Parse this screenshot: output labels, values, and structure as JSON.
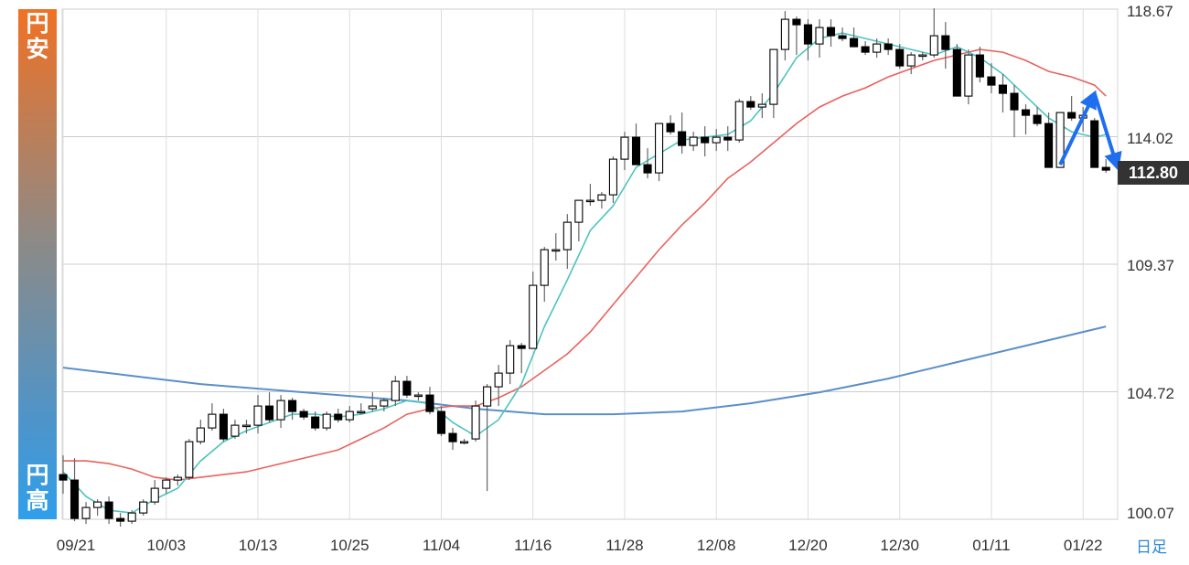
{
  "sidebar": {
    "top_label": [
      "円",
      "安"
    ],
    "bottom_label": [
      "円",
      "高"
    ]
  },
  "period_label": "日足",
  "current_price_label": "112.80",
  "colors": {
    "up_candle": "#ffffff",
    "down_candle": "#000000",
    "ma_short": "#4dc4c0",
    "ma_mid": "#e8625e",
    "ma_long": "#5b8fc9",
    "arrow": "#1e6ef0",
    "period_label": "#2a8ad8"
  },
  "chart_data": {
    "type": "candlestick",
    "x_tick_labels": [
      "09/21",
      "10/03",
      "10/13",
      "10/25",
      "11/04",
      "11/16",
      "11/28",
      "12/08",
      "12/20",
      "12/30",
      "01/11",
      "01/22"
    ],
    "y_tick_labels": [
      "118.67",
      "114.02",
      "109.37",
      "104.72",
      "100.07"
    ],
    "ylim": [
      100.07,
      118.67
    ],
    "grid": true,
    "candles": [
      [
        101.7,
        102.4,
        101.0,
        101.5
      ],
      [
        101.5,
        102.3,
        100.0,
        100.1
      ],
      [
        100.1,
        100.7,
        99.9,
        100.5
      ],
      [
        100.5,
        100.8,
        100.2,
        100.7
      ],
      [
        100.7,
        100.9,
        99.9,
        100.1
      ],
      [
        100.1,
        100.3,
        99.8,
        100.0
      ],
      [
        100.0,
        100.4,
        99.9,
        100.3
      ],
      [
        100.3,
        100.8,
        100.2,
        100.7
      ],
      [
        100.7,
        101.5,
        100.6,
        101.2
      ],
      [
        101.2,
        101.6,
        101.0,
        101.5
      ],
      [
        101.5,
        101.7,
        101.3,
        101.6
      ],
      [
        101.6,
        103.0,
        101.5,
        102.9
      ],
      [
        102.9,
        103.7,
        102.8,
        103.4
      ],
      [
        103.4,
        104.3,
        103.3,
        103.9
      ],
      [
        103.9,
        104.1,
        102.9,
        103.0
      ],
      [
        103.1,
        103.7,
        103.0,
        103.5
      ],
      [
        103.5,
        103.7,
        103.2,
        103.5
      ],
      [
        103.5,
        104.6,
        103.2,
        104.2
      ],
      [
        104.2,
        104.7,
        103.6,
        103.7
      ],
      [
        103.7,
        104.6,
        103.4,
        104.4
      ],
      [
        104.4,
        104.5,
        103.7,
        104.0
      ],
      [
        104.0,
        104.1,
        103.7,
        103.8
      ],
      [
        103.8,
        104.0,
        103.3,
        103.4
      ],
      [
        103.4,
        104.0,
        103.3,
        103.9
      ],
      [
        103.9,
        104.1,
        103.6,
        103.7
      ],
      [
        103.7,
        104.2,
        103.6,
        104.0
      ],
      [
        104.0,
        104.3,
        103.9,
        104.0
      ],
      [
        104.1,
        104.7,
        104.0,
        104.2
      ],
      [
        104.2,
        104.5,
        104.0,
        104.4
      ],
      [
        104.4,
        105.3,
        104.2,
        105.1
      ],
      [
        105.1,
        105.3,
        104.5,
        104.6
      ],
      [
        104.6,
        104.7,
        104.4,
        104.6
      ],
      [
        104.6,
        104.9,
        103.9,
        104.0
      ],
      [
        104.0,
        104.2,
        103.1,
        103.2
      ],
      [
        103.2,
        103.4,
        102.6,
        102.9
      ],
      [
        102.9,
        103.0,
        102.8,
        102.9
      ],
      [
        103.0,
        104.4,
        102.9,
        104.2
      ],
      [
        104.2,
        105.0,
        101.1,
        104.9
      ],
      [
        104.9,
        105.7,
        104.2,
        105.4
      ],
      [
        105.4,
        106.6,
        105.0,
        106.4
      ],
      [
        106.4,
        106.5,
        105.4,
        106.3
      ],
      [
        106.3,
        109.1,
        106.3,
        108.6
      ],
      [
        108.6,
        110.0,
        108.0,
        109.9
      ],
      [
        109.9,
        110.5,
        109.5,
        109.9
      ],
      [
        109.9,
        111.2,
        109.2,
        110.9
      ],
      [
        110.9,
        111.6,
        110.2,
        111.7
      ],
      [
        111.7,
        112.3,
        111.5,
        111.7
      ],
      [
        111.7,
        112.0,
        111.4,
        111.9
      ],
      [
        111.9,
        113.3,
        111.6,
        113.2
      ],
      [
        113.2,
        114.2,
        112.8,
        114.0
      ],
      [
        114.0,
        114.5,
        113.0,
        113.0
      ],
      [
        113.0,
        113.6,
        112.5,
        112.7
      ],
      [
        112.7,
        114.4,
        112.4,
        114.5
      ],
      [
        114.5,
        114.8,
        114.1,
        114.2
      ],
      [
        114.2,
        114.9,
        113.4,
        113.7
      ],
      [
        113.7,
        114.2,
        113.5,
        114.0
      ],
      [
        114.0,
        114.4,
        113.3,
        113.8
      ],
      [
        113.8,
        114.3,
        113.5,
        114.0
      ],
      [
        114.0,
        114.4,
        113.5,
        113.9
      ],
      [
        113.9,
        115.4,
        113.8,
        115.3
      ],
      [
        115.3,
        115.5,
        115.0,
        115.1
      ],
      [
        115.1,
        115.6,
        114.7,
        115.2
      ],
      [
        115.2,
        117.2,
        114.7,
        117.2
      ],
      [
        117.2,
        118.6,
        116.8,
        118.3
      ],
      [
        118.3,
        118.4,
        117.0,
        118.1
      ],
      [
        118.1,
        118.3,
        116.8,
        117.4
      ],
      [
        117.4,
        118.3,
        116.9,
        118.0
      ],
      [
        118.0,
        118.3,
        117.3,
        117.7
      ],
      [
        117.7,
        118.0,
        117.5,
        117.6
      ],
      [
        117.6,
        118.0,
        117.3,
        117.3
      ],
      [
        117.3,
        117.5,
        117.0,
        117.1
      ],
      [
        117.1,
        117.6,
        116.9,
        117.4
      ],
      [
        117.4,
        117.6,
        117.0,
        117.2
      ],
      [
        117.2,
        117.4,
        116.5,
        116.6
      ],
      [
        116.6,
        117.1,
        116.3,
        117.0
      ],
      [
        117.0,
        117.1,
        116.8,
        117.0
      ],
      [
        117.0,
        118.7,
        116.9,
        117.7
      ],
      [
        117.7,
        118.2,
        116.5,
        117.2
      ],
      [
        117.2,
        117.4,
        115.5,
        115.5
      ],
      [
        115.5,
        117.2,
        115.2,
        117.0
      ],
      [
        117.0,
        117.3,
        116.0,
        116.2
      ],
      [
        116.2,
        116.7,
        115.6,
        115.9
      ],
      [
        115.9,
        116.3,
        114.9,
        115.6
      ],
      [
        115.6,
        115.9,
        114.0,
        115.0
      ],
      [
        115.0,
        115.2,
        114.1,
        114.8
      ],
      [
        114.8,
        115.1,
        114.4,
        114.5
      ],
      [
        114.5,
        114.9,
        112.9,
        112.9
      ],
      [
        112.9,
        114.9,
        112.9,
        114.9
      ],
      [
        114.9,
        115.5,
        114.6,
        114.7
      ],
      [
        114.7,
        115.1,
        114.2,
        114.8
      ],
      [
        114.6,
        114.7,
        112.9,
        112.9
      ],
      [
        112.9,
        113.2,
        112.7,
        112.8
      ]
    ],
    "ma_short": [
      [
        0,
        101.8
      ],
      [
        2,
        100.9
      ],
      [
        4,
        100.4
      ],
      [
        6,
        100.3
      ],
      [
        8,
        100.8
      ],
      [
        10,
        101.2
      ],
      [
        12,
        102.2
      ],
      [
        14,
        102.9
      ],
      [
        16,
        103.3
      ],
      [
        18,
        103.6
      ],
      [
        20,
        103.9
      ],
      [
        22,
        103.9
      ],
      [
        24,
        103.8
      ],
      [
        26,
        103.9
      ],
      [
        28,
        104.1
      ],
      [
        30,
        104.4
      ],
      [
        32,
        104.3
      ],
      [
        34,
        103.6
      ],
      [
        36,
        103.1
      ],
      [
        38,
        103.7
      ],
      [
        40,
        105.0
      ],
      [
        42,
        107.1
      ],
      [
        44,
        108.8
      ],
      [
        46,
        110.6
      ],
      [
        48,
        111.5
      ],
      [
        50,
        112.9
      ],
      [
        52,
        113.4
      ],
      [
        54,
        113.9
      ],
      [
        56,
        114.0
      ],
      [
        58,
        114.1
      ],
      [
        60,
        114.6
      ],
      [
        62,
        115.6
      ],
      [
        64,
        116.9
      ],
      [
        66,
        117.6
      ],
      [
        68,
        117.8
      ],
      [
        70,
        117.6
      ],
      [
        72,
        117.4
      ],
      [
        74,
        117.2
      ],
      [
        76,
        117.0
      ],
      [
        78,
        117.3
      ],
      [
        80,
        116.9
      ],
      [
        82,
        116.3
      ],
      [
        84,
        115.5
      ],
      [
        86,
        114.7
      ],
      [
        88,
        114.2
      ],
      [
        90,
        114.0
      ],
      [
        91,
        114.1
      ]
    ],
    "ma_mid": [
      [
        0,
        102.2
      ],
      [
        2,
        102.2
      ],
      [
        4,
        102.1
      ],
      [
        6,
        101.9
      ],
      [
        8,
        101.6
      ],
      [
        10,
        101.5
      ],
      [
        12,
        101.6
      ],
      [
        14,
        101.7
      ],
      [
        16,
        101.8
      ],
      [
        18,
        102.0
      ],
      [
        20,
        102.2
      ],
      [
        22,
        102.4
      ],
      [
        24,
        102.6
      ],
      [
        26,
        103.0
      ],
      [
        28,
        103.4
      ],
      [
        30,
        103.9
      ],
      [
        32,
        104.1
      ],
      [
        34,
        104.2
      ],
      [
        36,
        104.2
      ],
      [
        38,
        104.5
      ],
      [
        40,
        104.9
      ],
      [
        42,
        105.5
      ],
      [
        44,
        106.1
      ],
      [
        46,
        106.9
      ],
      [
        48,
        107.9
      ],
      [
        50,
        108.9
      ],
      [
        52,
        109.9
      ],
      [
        54,
        110.8
      ],
      [
        56,
        111.6
      ],
      [
        58,
        112.5
      ],
      [
        60,
        113.1
      ],
      [
        62,
        113.8
      ],
      [
        64,
        114.5
      ],
      [
        66,
        115.1
      ],
      [
        68,
        115.5
      ],
      [
        70,
        115.8
      ],
      [
        72,
        116.2
      ],
      [
        74,
        116.5
      ],
      [
        76,
        116.8
      ],
      [
        78,
        117.0
      ],
      [
        80,
        117.2
      ],
      [
        82,
        117.1
      ],
      [
        84,
        116.8
      ],
      [
        86,
        116.4
      ],
      [
        88,
        116.2
      ],
      [
        90,
        115.9
      ],
      [
        91,
        115.5
      ]
    ],
    "ma_long": [
      [
        0,
        105.6
      ],
      [
        6,
        105.3
      ],
      [
        12,
        105.0
      ],
      [
        18,
        104.8
      ],
      [
        24,
        104.6
      ],
      [
        30,
        104.4
      ],
      [
        36,
        104.1
      ],
      [
        42,
        103.9
      ],
      [
        48,
        103.9
      ],
      [
        54,
        104.0
      ],
      [
        60,
        104.3
      ],
      [
        66,
        104.7
      ],
      [
        72,
        105.2
      ],
      [
        78,
        105.8
      ],
      [
        84,
        106.4
      ],
      [
        90,
        107.0
      ],
      [
        91,
        107.1
      ]
    ],
    "arrows": [
      {
        "from": [
          87,
          113.0
        ],
        "to": [
          90,
          115.6
        ]
      },
      {
        "from": [
          90,
          115.6
        ],
        "to": [
          92,
          112.9
        ]
      }
    ]
  }
}
